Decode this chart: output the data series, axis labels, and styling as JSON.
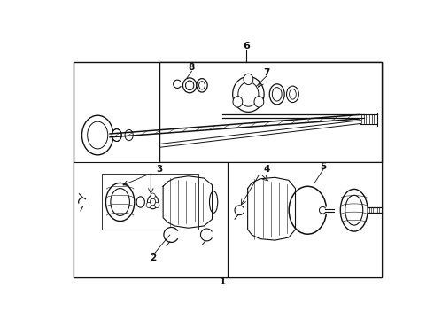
{
  "background_color": "#ffffff",
  "line_color": "#111111",
  "fig_width": 4.9,
  "fig_height": 3.6,
  "dpi": 100
}
